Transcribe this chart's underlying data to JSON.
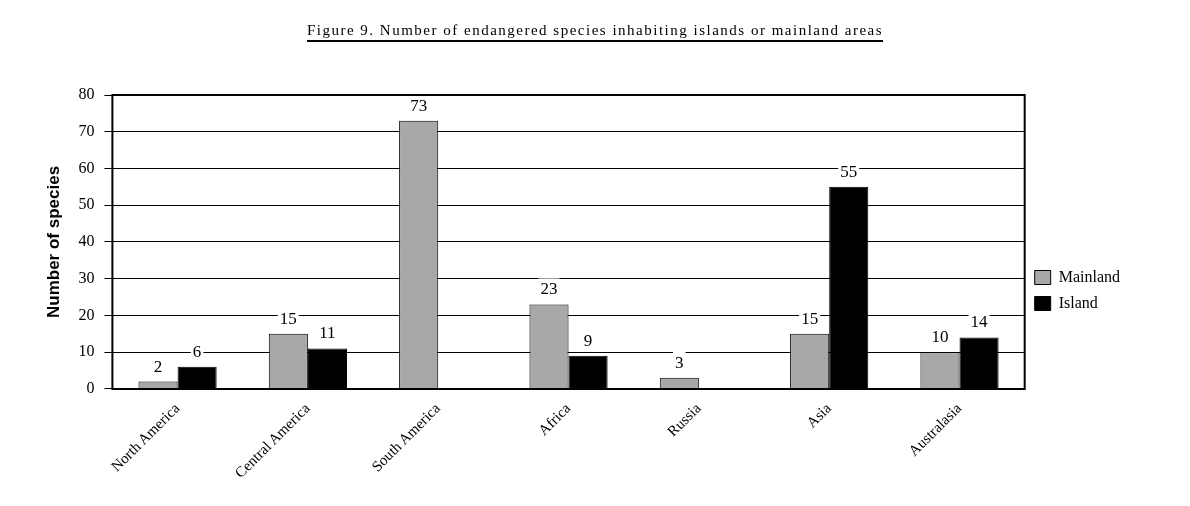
{
  "chart_data": {
    "type": "bar",
    "title": "Figure 9. Number of endangered species inhabiting islands or mainland areas",
    "ylabel": "Number of species",
    "categories": [
      "North America",
      "Central America",
      "South America",
      "Africa",
      "Russia",
      "Asia",
      "Australasia"
    ],
    "series": [
      {
        "name": "Mainland",
        "color": "#a8a8a8",
        "values": [
          2,
          15,
          73,
          23,
          3,
          15,
          10
        ]
      },
      {
        "name": "Island",
        "color": "#000000",
        "values": [
          6,
          11,
          null,
          9,
          null,
          55,
          14
        ]
      }
    ],
    "ylim": [
      0,
      80
    ],
    "yticks": [
      0,
      10,
      20,
      30,
      40,
      50,
      60,
      70,
      80
    ],
    "grid": "y",
    "legend": "right",
    "data_labels": true
  }
}
